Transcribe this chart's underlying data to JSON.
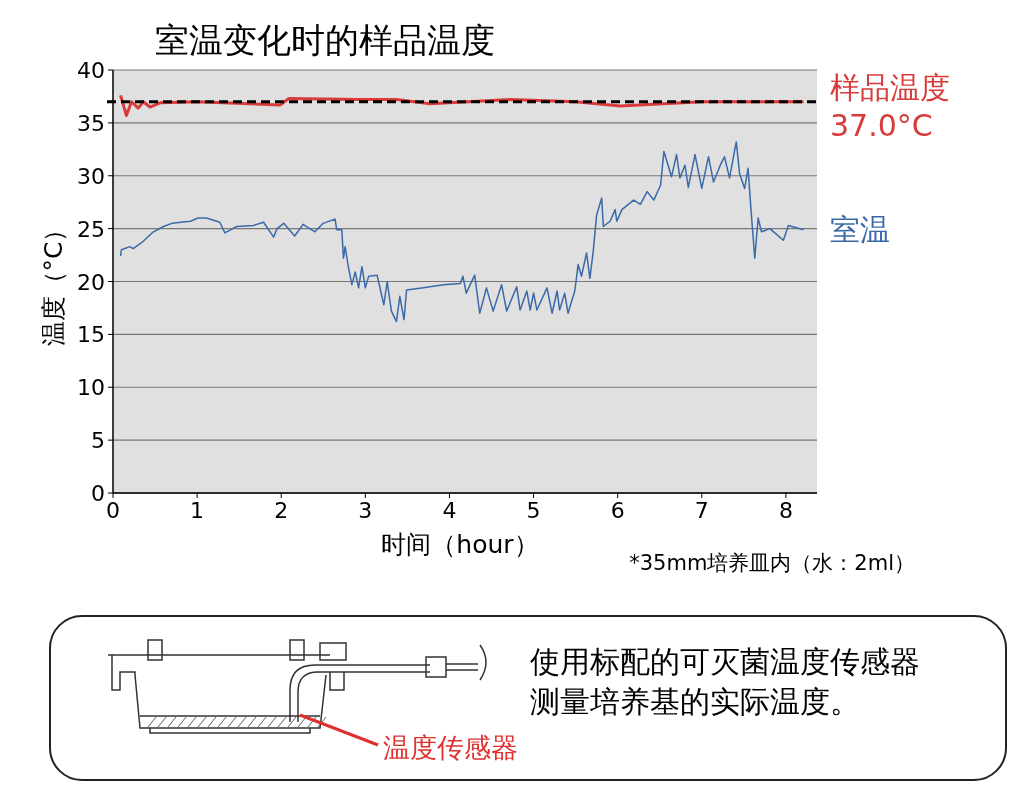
{
  "chart_data": {
    "type": "line",
    "title": "室温变化时的样品温度",
    "xlabel": "时间（hour）",
    "ylabel": "温度（°C）",
    "xlim": [
      0,
      8.37
    ],
    "xticks": [
      0,
      1,
      2,
      3,
      4,
      5,
      6,
      7,
      8
    ],
    "ylim": [
      0,
      40
    ],
    "yticks": [
      0,
      5,
      10,
      15,
      20,
      25,
      30,
      35,
      40
    ],
    "grid": "y",
    "ref_lines": [
      {
        "axis": "y",
        "value": 37,
        "label": "37.0°C",
        "color": "#000000",
        "line_style": "dashed"
      }
    ],
    "series": [
      {
        "name": "样品温度",
        "color": "#d93a3a",
        "x": [
          0.09,
          0.16,
          0.22,
          0.3,
          0.36,
          0.44,
          0.56,
          1.0,
          1.99,
          2.09,
          2.94,
          3.37,
          3.77,
          4.72,
          5.5,
          6.03,
          7.0,
          8.21
        ],
        "values": [
          37.6,
          35.7,
          37.0,
          36.4,
          37.0,
          36.5,
          36.9,
          37.0,
          36.7,
          37.3,
          37.2,
          37.2,
          36.8,
          37.2,
          37.0,
          36.6,
          37.0,
          37.0
        ]
      },
      {
        "name": "室温",
        "color": "#3a6aaa",
        "x": [
          0.09,
          0.1,
          0.2,
          0.24,
          0.36,
          0.48,
          0.6,
          0.7,
          0.92,
          1.01,
          1.11,
          1.27,
          1.33,
          1.47,
          1.67,
          1.79,
          1.91,
          1.95,
          2.03,
          2.16,
          2.26,
          2.4,
          2.5,
          2.64,
          2.66,
          2.72,
          2.74,
          2.76,
          2.8,
          2.84,
          2.88,
          2.92,
          2.96,
          3.0,
          3.04,
          3.14,
          3.22,
          3.26,
          3.31,
          3.37,
          3.41,
          3.46,
          3.49,
          3.69,
          3.93,
          4.13,
          4.16,
          4.2,
          4.3,
          4.36,
          4.44,
          4.52,
          4.62,
          4.68,
          4.8,
          4.84,
          4.92,
          4.96,
          5.0,
          5.04,
          5.16,
          5.22,
          5.28,
          5.31,
          5.37,
          5.41,
          5.49,
          5.53,
          5.57,
          5.63,
          5.67,
          5.71,
          5.75,
          5.81,
          5.83,
          5.91,
          5.97,
          5.99,
          6.05,
          6.19,
          6.27,
          6.35,
          6.43,
          6.51,
          6.55,
          6.6,
          6.64,
          6.7,
          6.74,
          6.8,
          6.84,
          6.92,
          7.0,
          7.08,
          7.14,
          7.22,
          7.27,
          7.33,
          7.41,
          7.45,
          7.51,
          7.55,
          7.59,
          7.63,
          7.67,
          7.71,
          7.81,
          7.97,
          8.03,
          8.21
        ],
        "values": [
          22.4,
          23.0,
          23.3,
          23.1,
          23.8,
          24.7,
          25.2,
          25.5,
          25.7,
          26.0,
          26.0,
          25.6,
          24.6,
          25.2,
          25.3,
          25.6,
          24.2,
          25.0,
          25.5,
          24.3,
          25.4,
          24.7,
          25.5,
          25.9,
          24.9,
          24.9,
          22.2,
          23.3,
          21.3,
          19.7,
          20.9,
          19.4,
          21.4,
          19.4,
          20.5,
          20.6,
          17.8,
          20.0,
          17.2,
          16.2,
          18.6,
          16.4,
          19.2,
          19.4,
          19.7,
          19.8,
          20.5,
          18.9,
          20.6,
          17.0,
          19.4,
          17.2,
          19.7,
          17.2,
          19.5,
          17.3,
          19.1,
          17.3,
          18.9,
          17.3,
          19.4,
          17.0,
          19.1,
          17.3,
          18.9,
          17.0,
          19.1,
          21.6,
          20.5,
          22.7,
          20.3,
          22.9,
          26.3,
          27.9,
          25.2,
          25.7,
          26.8,
          25.7,
          26.8,
          27.7,
          27.3,
          28.5,
          27.7,
          29.1,
          32.3,
          31.0,
          29.9,
          32.0,
          29.8,
          31.0,
          28.9,
          32.0,
          28.8,
          31.8,
          29.4,
          31.0,
          31.8,
          29.8,
          33.2,
          30.2,
          28.8,
          30.7,
          26.3,
          22.2,
          26.0,
          24.7,
          25.0,
          23.9,
          25.3,
          24.9
        ]
      }
    ],
    "annotations": [
      "*35mm培养皿内（水：2ml）",
      "使用标配的可灭菌温度传感器测量培养基的实际温度。",
      "温度传感器"
    ]
  }
}
